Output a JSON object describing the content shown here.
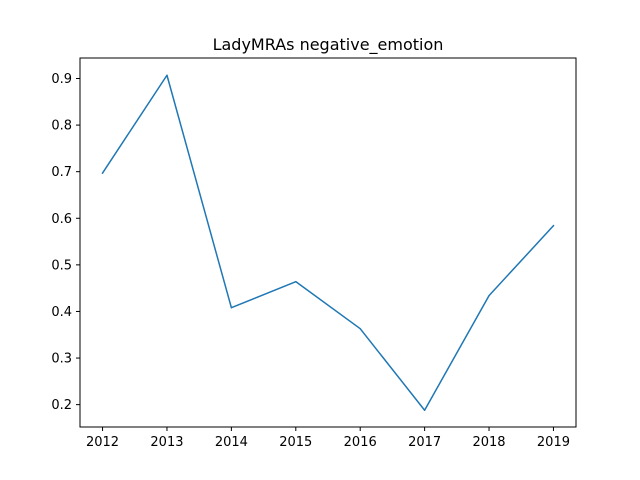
{
  "chart_data": {
    "type": "line",
    "title": "LadyMRAs negative_emotion",
    "xlabel": "",
    "ylabel": "",
    "x": [
      2012,
      2013,
      2014,
      2015,
      2016,
      2017,
      2018,
      2019
    ],
    "series": [
      {
        "values": [
          0.697,
          0.907,
          0.408,
          0.464,
          0.363,
          0.188,
          0.434,
          0.584
        ],
        "color": "#1f77b4"
      }
    ],
    "xlim": [
      2011.65,
      2019.35
    ],
    "ylim": [
      0.152,
      0.944
    ],
    "xticks": [
      2012,
      2013,
      2014,
      2015,
      2016,
      2017,
      2018,
      2019
    ],
    "xtick_labels": [
      "2012",
      "2013",
      "2014",
      "2015",
      "2016",
      "2017",
      "2018",
      "2019"
    ],
    "yticks": [
      0.2,
      0.3,
      0.4,
      0.5,
      0.6,
      0.7,
      0.8,
      0.9
    ],
    "ytick_labels": [
      "0.2",
      "0.3",
      "0.4",
      "0.5",
      "0.6",
      "0.7",
      "0.8",
      "0.9"
    ],
    "grid": false,
    "legend": "none"
  }
}
